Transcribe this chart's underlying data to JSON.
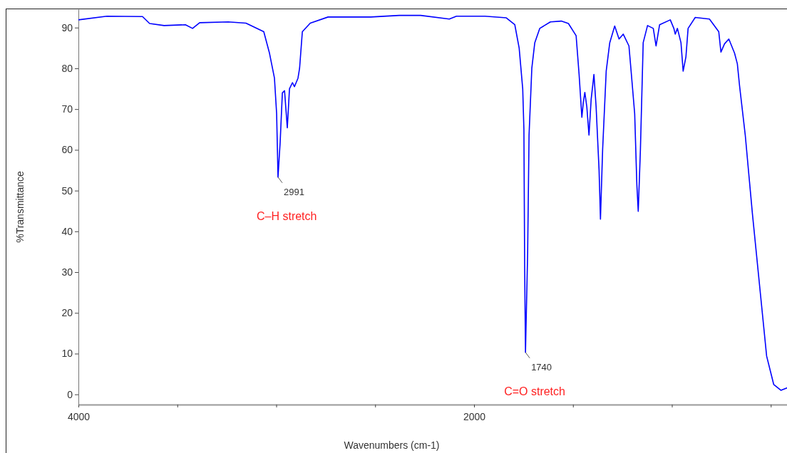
{
  "chart_data": {
    "type": "line",
    "xlabel": "Wavenumbers (cm-1)",
    "ylabel": "%Transmittance",
    "xlim": [
      4000,
      400
    ],
    "ylim": [
      -2.5,
      94.5
    ],
    "xticks": [
      4000,
      {
        "value": 3500,
        "label": null
      },
      {
        "value": 3000,
        "label": null
      },
      {
        "value": 2500,
        "label": null
      },
      2000,
      {
        "value": 1500,
        "label": null
      },
      {
        "value": 1000,
        "label": null
      },
      {
        "value": 500,
        "label": null
      }
    ],
    "yticks": [
      0,
      10,
      20,
      30,
      40,
      50,
      60,
      70,
      80,
      90
    ],
    "grid": false,
    "marker": "none",
    "line_style": "solid",
    "series": [
      {
        "color": "#0000ff",
        "x": [
          4000,
          3856,
          3676,
          3640,
          3567,
          3459,
          3423,
          3387,
          3243,
          3153,
          3063,
          3034,
          3009,
          2998,
          2991,
          2980,
          2969,
          2958,
          2944,
          2933,
          2918,
          2908,
          2890,
          2882,
          2868,
          2828,
          2738,
          2522,
          2378,
          2270,
          2125,
          2089,
          1945,
          1837,
          1794,
          1772,
          1754,
          1748,
          1744,
          1740,
          1729,
          1722,
          1708,
          1693,
          1668,
          1614,
          1559,
          1523,
          1484,
          1469,
          1455,
          1448,
          1440,
          1430,
          1419,
          1408,
          1394,
          1383,
          1368,
          1361,
          1350,
          1332,
          1314,
          1289,
          1267,
          1246,
          1217,
          1206,
          1188,
          1177,
          1170,
          1159,
          1145,
          1123,
          1094,
          1080,
          1062,
          1008,
          990,
          983,
          972,
          954,
          943,
          929,
          918,
          882,
          810,
          763,
          752,
          734,
          712,
          683,
          669,
          658,
          629,
          593,
          557,
          521,
          485,
          449,
          417
        ],
        "values": [
          91.9,
          92.8,
          92.7,
          91.0,
          90.5,
          90.7,
          89.8,
          91.2,
          91.4,
          91.1,
          89.0,
          83.7,
          77.6,
          68.9,
          53.3,
          62.0,
          74.0,
          74.5,
          65.4,
          75.0,
          76.5,
          75.5,
          77.6,
          80.0,
          89.0,
          91.1,
          92.6,
          92.6,
          93.0,
          93.0,
          92.1,
          92.8,
          92.8,
          92.4,
          90.7,
          85.0,
          75.0,
          65.0,
          30.0,
          10.3,
          35.0,
          63.6,
          80.0,
          86.3,
          89.8,
          91.4,
          91.6,
          91.0,
          88.0,
          78.5,
          68.0,
          71.5,
          74.1,
          70.6,
          63.6,
          72.4,
          78.5,
          70.6,
          55.0,
          43.0,
          60.1,
          79.3,
          86.3,
          90.4,
          87.2,
          88.4,
          85.5,
          79.3,
          68.9,
          51.4,
          44.9,
          60.1,
          86.3,
          90.5,
          89.8,
          85.5,
          90.7,
          91.9,
          89.8,
          88.4,
          89.8,
          86.3,
          79.3,
          82.8,
          89.8,
          92.5,
          92.1,
          89.0,
          84.0,
          86.0,
          87.2,
          83.7,
          81.1,
          75.8,
          63.6,
          44.4,
          26.9,
          9.4,
          2.4,
          1.0,
          1.6
        ]
      }
    ],
    "annotations": [
      {
        "text": "2991",
        "x": 2991,
        "y": 53.3
      },
      "C–H stretch",
      {
        "text": "1740",
        "x": 1740,
        "y": 10.3
      },
      "C=O stretch"
    ]
  }
}
